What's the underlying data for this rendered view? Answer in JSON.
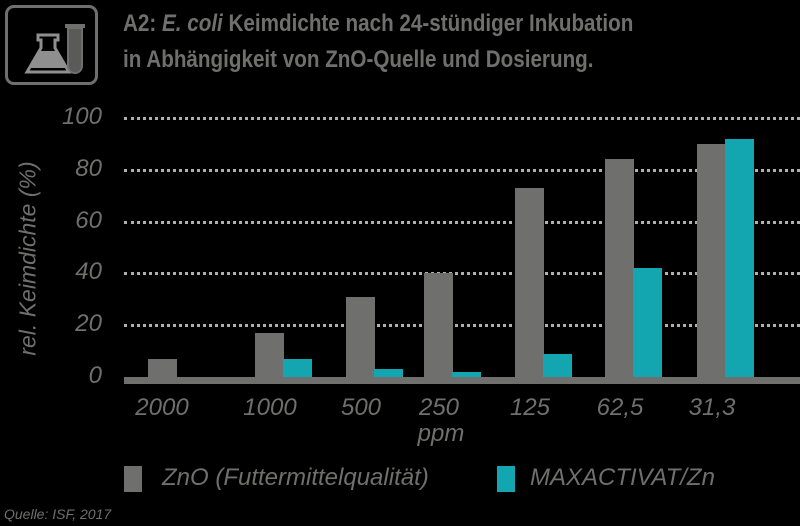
{
  "header": {
    "icon": "lab-flask-testtube-icon",
    "title_prefix": "A2: ",
    "title_italic": "E. coli",
    "title_rest_line1": " Keimdichte nach 24-stündiger Inkubation",
    "title_line2": "in Abhängigkeit von ZnO-Quelle und Dosierung."
  },
  "colors": {
    "zno": "#6f6f6e",
    "maxactivat": "#13a6b1",
    "background": "#000000",
    "grid": "#b0b0b0"
  },
  "chart_data": {
    "type": "bar",
    "title": "A2: E. coli Keimdichte nach 24-stündiger Inkubation in Abhängigkeit von ZnO-Quelle und Dosierung.",
    "xlabel": "ppm",
    "ylabel": "rel. Keimdichte (%)",
    "ylim": [
      0,
      100
    ],
    "yticks": [
      "0",
      "20",
      "40",
      "60",
      "80",
      "100"
    ],
    "grid": true,
    "legend_position": "bottom",
    "categories": [
      "2000",
      "1000",
      "500",
      "250",
      "125",
      "62,5",
      "31,3"
    ],
    "series": [
      {
        "name": "ZnO (Futtermittelqualität)",
        "values": [
          7,
          17,
          31,
          40,
          73,
          84,
          90
        ]
      },
      {
        "name": "MAXACTIVAT/Zn",
        "values": [
          0,
          7,
          3,
          2,
          9,
          42,
          92
        ]
      }
    ]
  },
  "legend": {
    "zno": "ZnO (Futtermittelqualität)",
    "maxactivat": "MAXACTIVAT/Zn"
  },
  "source": "Quelle: ISF, 2017"
}
